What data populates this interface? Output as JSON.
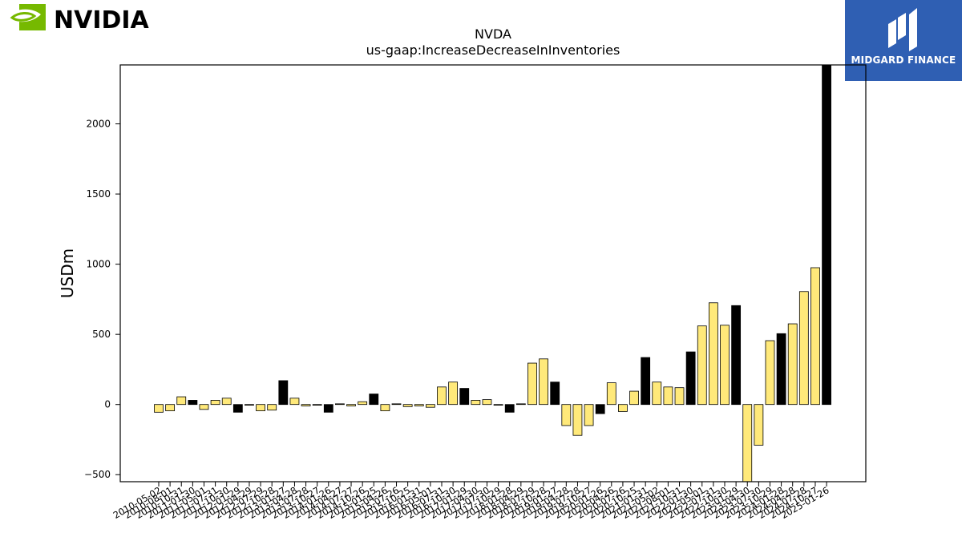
{
  "brand": {
    "left_logo_text": "NVIDIA",
    "left_logo_color": "#76b900",
    "right_logo_text": "MIDGARD FINANCE",
    "right_logo_bg": "#2f5fb3"
  },
  "chart_data": {
    "type": "bar",
    "title": "NVDA",
    "subtitle": "us-gaap:IncreaseDecreaseInInventories",
    "xlabel": "",
    "ylabel": "USDm",
    "ylim": [
      -550,
      2420
    ],
    "yticks": [
      -500,
      0,
      500,
      1000,
      1500,
      2000
    ],
    "grid": false,
    "legend": "none",
    "colors": {
      "quarterly": "#ffe97a",
      "annual": "#000000",
      "edge": "#000000"
    },
    "categories": [
      "2010-05-02",
      "2010-08-01",
      "2010-10-31",
      "2011-01-30",
      "2011-05-01",
      "2011-07-31",
      "2011-10-30",
      "2012-01-29",
      "2012-04-29",
      "2012-07-29",
      "2012-10-28",
      "2013-01-27",
      "2013-04-28",
      "2013-07-28",
      "2013-10-27",
      "2014-01-26",
      "2014-04-27",
      "2014-07-27",
      "2014-10-26",
      "2015-01-25",
      "2015-04-26",
      "2015-07-26",
      "2015-10-25",
      "2016-01-31",
      "2016-05-01",
      "2016-07-31",
      "2016-10-30",
      "2017-01-29",
      "2017-04-30",
      "2017-07-30",
      "2017-10-29",
      "2018-01-28",
      "2018-04-29",
      "2018-07-29",
      "2018-10-28",
      "2019-01-27",
      "2019-04-28",
      "2019-07-28",
      "2019-10-27",
      "2020-01-26",
      "2020-04-26",
      "2020-07-26",
      "2020-10-25",
      "2021-01-31",
      "2021-05-02",
      "2021-08-01",
      "2021-10-31",
      "2022-01-30",
      "2022-05-01",
      "2022-07-31",
      "2022-10-30",
      "2023-01-29",
      "2023-04-30",
      "2023-07-30",
      "2023-10-29",
      "2024-01-28",
      "2024-04-28",
      "2024-07-28",
      "2024-10-27",
      "2025-01-26"
    ],
    "values": [
      -55,
      -45,
      55,
      30,
      -35,
      30,
      45,
      -55,
      -5,
      -45,
      -40,
      170,
      45,
      -10,
      -5,
      -55,
      5,
      -10,
      20,
      75,
      -45,
      5,
      -15,
      -10,
      -20,
      125,
      160,
      115,
      30,
      35,
      -5,
      -55,
      5,
      295,
      325,
      160,
      -150,
      -220,
      -150,
      -65,
      155,
      -50,
      95,
      335,
      160,
      125,
      120,
      375,
      560,
      725,
      565,
      705,
      -550,
      -290,
      455,
      505,
      575,
      805,
      975,
      2420
    ],
    "series_kind": [
      "q",
      "q",
      "q",
      "a",
      "q",
      "q",
      "q",
      "a",
      "q",
      "q",
      "q",
      "a",
      "q",
      "q",
      "q",
      "a",
      "q",
      "q",
      "q",
      "a",
      "q",
      "q",
      "q",
      "q",
      "q",
      "q",
      "q",
      "a",
      "q",
      "q",
      "q",
      "a",
      "q",
      "q",
      "q",
      "a",
      "q",
      "q",
      "q",
      "a",
      "q",
      "q",
      "q",
      "a",
      "q",
      "q",
      "q",
      "a",
      "q",
      "q",
      "q",
      "a",
      "q",
      "q",
      "q",
      "a",
      "q",
      "q",
      "q",
      "a"
    ]
  }
}
